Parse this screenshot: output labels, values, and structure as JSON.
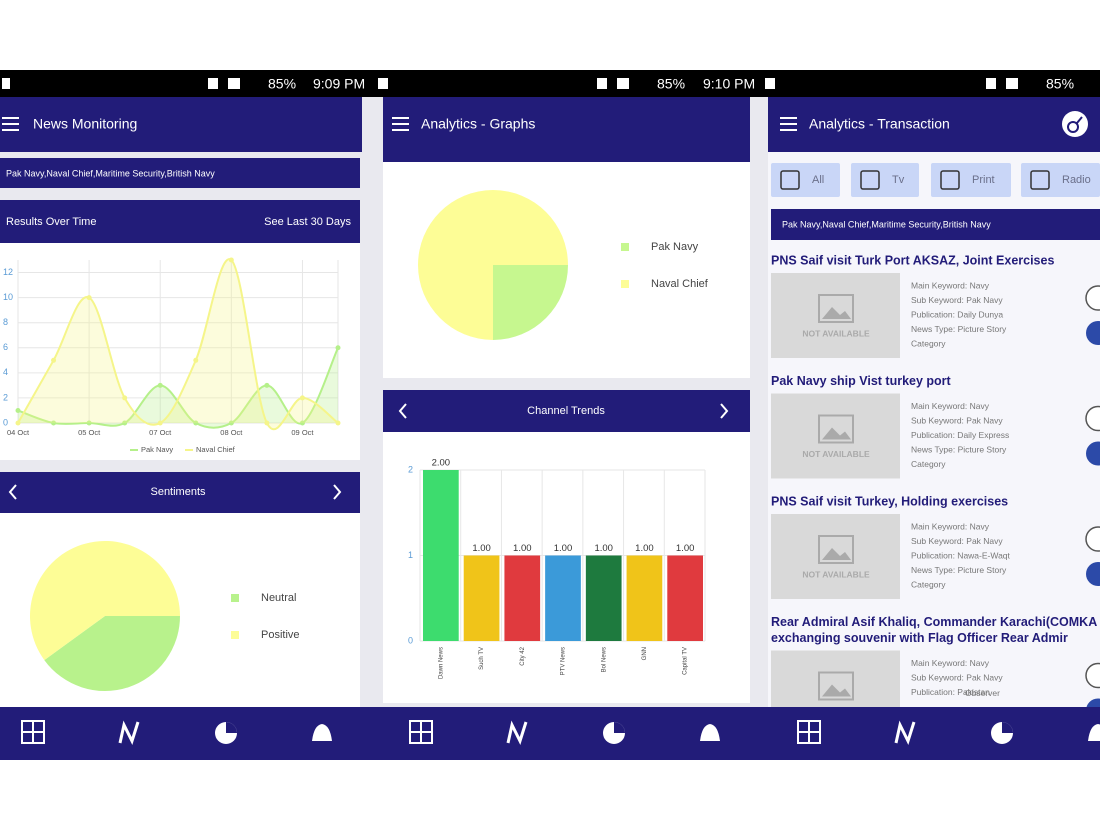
{
  "status_bar": [
    {
      "battery": "85%",
      "time": "9:09 PM"
    },
    {
      "battery": "85%",
      "time": "9:10 PM"
    },
    {
      "battery": "85%"
    }
  ],
  "screens": [
    {
      "title": "News Monitoring",
      "keywords": "Pak Navy,Naval Chief,Maritime Security,British Navy",
      "results_link": "See Last 30 Days"
    },
    {
      "title": "Analytics - Graphs"
    },
    {
      "title": "Analytics - Transaction",
      "filters": [
        "All",
        "Tv",
        "Print",
        "Radio"
      ],
      "keywords": "Pak Navy,Naval Chief,Maritime Security,British Navy",
      "news": [
        {
          "title": [
            "PNS Saif visit Turk Port AKSAZ, Joint Exercises"
          ],
          "image_text": "NOT AVAILABLE",
          "fields": [
            "Main Keyword: Navy",
            "Sub Keyword: Pak Navy",
            "Publication: Daily Dunya",
            "News Type: Picture Story",
            "Category"
          ]
        },
        {
          "title": [
            "Pak Navy ship Vist turkey port"
          ],
          "image_text": "NOT AVAILABLE",
          "fields": [
            "Main Keyword: Navy",
            "Sub Keyword: Pak Navy",
            "Publication: Daily Express",
            "News Type: Picture Story",
            "Category"
          ]
        },
        {
          "title": [
            "PNS Saif visit Turkey, Holding exercises"
          ],
          "image_text": "NOT AVAILABLE",
          "fields": [
            "Main Keyword: Navy",
            "Sub Keyword: Pak Navy",
            "Publication: Nawa-E-Waqt",
            "News Type: Picture Story",
            "Category"
          ]
        },
        {
          "title": [
            "Rear Admiral Asif Khaliq, Commander Karachi(COMKA",
            "exchanging souvenir with Flag Officer Rear Admir"
          ],
          "fields": [
            "Main Keyword: Navy",
            "Sub Keyword: Pak Navy",
            "Publication: Pakistan",
            "Observer"
          ]
        }
      ]
    }
  ],
  "chart_data": [
    {
      "type": "line",
      "title": "Results Over Time",
      "categories": [
        "04 Oct",
        null,
        "05 Oct",
        null,
        "07 Oct",
        null,
        "08 Oct",
        null,
        "09 Oct",
        null
      ],
      "series": [
        {
          "name": "Pak Navy",
          "color": "#b5f08a",
          "values": [
            1,
            0,
            0,
            0,
            3,
            0,
            0,
            3,
            0,
            6
          ]
        },
        {
          "name": "Naval Chief",
          "color": "#f5f58a",
          "values": [
            0,
            5,
            10,
            2,
            0,
            5,
            13,
            0,
            2,
            0
          ]
        }
      ],
      "ylim": [
        0,
        13
      ],
      "yticks": [
        0,
        2,
        4,
        6,
        8,
        10,
        12
      ],
      "grid": true
    },
    {
      "type": "pie",
      "title": "Sentiments",
      "categories": [
        "Neutral",
        "Positive"
      ],
      "values": [
        40,
        60
      ],
      "colors": [
        "#b8f28c",
        "#fdfd96"
      ]
    },
    {
      "type": "pie",
      "categories": [
        "Pak Navy",
        "Naval Chief"
      ],
      "values": [
        25,
        75
      ],
      "colors": [
        "#c6f78f",
        "#fdfd96"
      ]
    },
    {
      "type": "bar",
      "title": "Channel Trends",
      "categories": [
        "Dawn News",
        "Such TV",
        "City 42",
        "PTV News",
        "Bol News",
        "GNN",
        "Capital TV"
      ],
      "values": [
        2,
        1,
        1,
        1,
        1,
        1,
        1
      ],
      "value_labels": [
        "2.00",
        "1.00",
        "1.00",
        "1.00",
        "1.00",
        "1.00",
        "1.00"
      ],
      "colors": [
        "#3ddc6e",
        "#f0c419",
        "#e03a3e",
        "#3b9ad9",
        "#1e7a3e",
        "#f0c419",
        "#e03a3e"
      ],
      "ylim": [
        0,
        2
      ],
      "yticks": [
        0,
        1,
        2
      ],
      "grid": true
    }
  ]
}
